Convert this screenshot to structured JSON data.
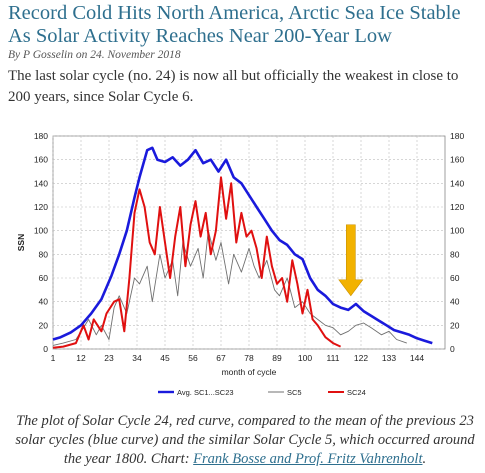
{
  "article": {
    "title": "Record Cold Hits North America, Arctic Sea Ice Stable As Solar Activity Reaches Near 200-Year Low",
    "byline_prefix": "By",
    "author": "P Gosselin",
    "date_prefix": "on",
    "date": "24. November 2018",
    "intro": "The last solar cycle (no. 24) is now all but officially the weakest in close to 200 years, since Solar Cycle 6.",
    "caption_text": "The plot of Solar Cycle 24, red curve, compared to the mean of the previous 23 solar cycles (blue curve) and the similar Solar Cycle 5, which occurred around the year 1800. Chart: ",
    "caption_link": "Frank Bosse and Prof. Fritz Vahrenholt",
    "caption_end": "."
  },
  "colors": {
    "avg": "#1a1adc",
    "sc5": "#707070",
    "sc24": "#e01010",
    "arrow": "#f2b200",
    "link": "#2e6f8e"
  },
  "chart_data": {
    "type": "line",
    "xlabel": "month of cycle",
    "ylabel": "SSN",
    "xlim": [
      1,
      155
    ],
    "ylim": [
      0,
      180
    ],
    "x_ticks": [
      1,
      12,
      23,
      34,
      45,
      56,
      67,
      78,
      89,
      100,
      111,
      122,
      133,
      144
    ],
    "y_ticks": [
      0,
      20,
      40,
      60,
      80,
      100,
      120,
      140,
      160,
      180
    ],
    "grid": true,
    "legend": "bottom",
    "annotation": {
      "type": "arrow",
      "x": 118,
      "y_from": 105,
      "y_to": 45
    },
    "series": [
      {
        "name": "Avg. SC1...SC23",
        "x": [
          1,
          4,
          8,
          12,
          16,
          20,
          24,
          27,
          30,
          33,
          35,
          38,
          40,
          42,
          45,
          48,
          51,
          54,
          57,
          60,
          63,
          66,
          69,
          72,
          75,
          78,
          81,
          84,
          87,
          90,
          93,
          96,
          99,
          102,
          105,
          108,
          111,
          114,
          117,
          120,
          123,
          126,
          129,
          132,
          135,
          138,
          141,
          144,
          147,
          150
        ],
        "y": [
          8,
          10,
          14,
          20,
          30,
          42,
          62,
          80,
          100,
          128,
          145,
          168,
          170,
          160,
          158,
          162,
          155,
          160,
          168,
          157,
          160,
          150,
          160,
          145,
          140,
          130,
          120,
          110,
          100,
          92,
          88,
          80,
          76,
          60,
          50,
          45,
          38,
          35,
          33,
          38,
          32,
          28,
          24,
          20,
          16,
          14,
          12,
          9,
          7,
          5
        ]
      },
      {
        "name": "SC5",
        "x": [
          1,
          5,
          10,
          13,
          15,
          18,
          20,
          23,
          25,
          27,
          30,
          33,
          35,
          38,
          40,
          43,
          45,
          48,
          50,
          52,
          55,
          58,
          60,
          62,
          65,
          67,
          70,
          72,
          75,
          78,
          80,
          82,
          85,
          88,
          90,
          93,
          96,
          99,
          102,
          105,
          108,
          111,
          114,
          117,
          120,
          123,
          126,
          130,
          133,
          136,
          140
        ],
        "y": [
          3,
          5,
          8,
          18,
          25,
          12,
          20,
          8,
          35,
          45,
          30,
          60,
          55,
          70,
          40,
          80,
          60,
          75,
          45,
          90,
          70,
          85,
          60,
          100,
          75,
          90,
          55,
          80,
          65,
          85,
          70,
          60,
          75,
          50,
          45,
          60,
          35,
          40,
          30,
          25,
          20,
          18,
          12,
          15,
          20,
          22,
          18,
          12,
          15,
          8,
          5
        ]
      },
      {
        "name": "SC24",
        "x": [
          1,
          5,
          10,
          13,
          15,
          17,
          20,
          22,
          25,
          27,
          29,
          31,
          33,
          35,
          37,
          39,
          41,
          43,
          45,
          47,
          49,
          51,
          53,
          55,
          57,
          59,
          61,
          63,
          65,
          67,
          69,
          71,
          73,
          75,
          77,
          79,
          81,
          83,
          85,
          87,
          89,
          91,
          93,
          95,
          97,
          99,
          101,
          103,
          105,
          108,
          111,
          114
        ],
        "y": [
          1,
          2,
          5,
          20,
          8,
          25,
          15,
          30,
          40,
          42,
          15,
          60,
          115,
          135,
          120,
          90,
          80,
          120,
          90,
          60,
          95,
          120,
          70,
          105,
          125,
          95,
          115,
          80,
          100,
          145,
          110,
          140,
          90,
          115,
          95,
          100,
          85,
          60,
          95,
          70,
          55,
          60,
          40,
          75,
          55,
          30,
          50,
          25,
          20,
          10,
          5,
          2
        ]
      }
    ]
  }
}
